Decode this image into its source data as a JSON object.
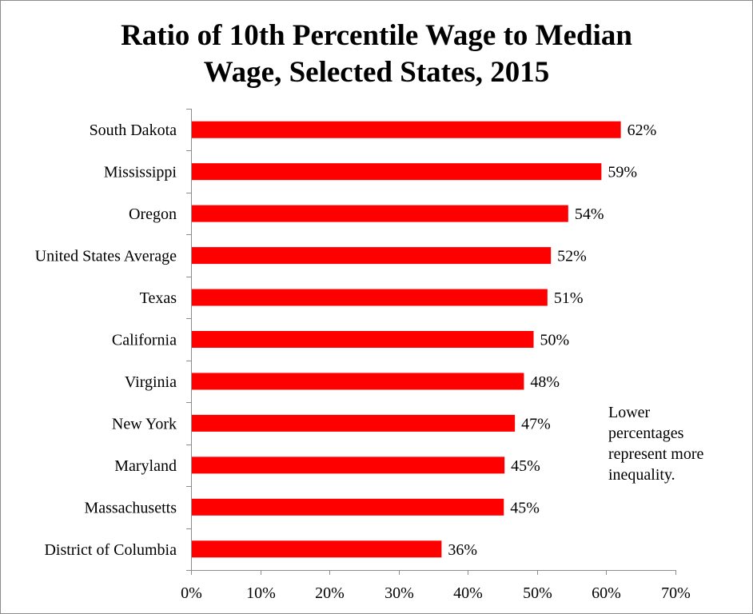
{
  "chart_data": {
    "type": "bar",
    "orientation": "horizontal",
    "title_lines": [
      "Ratio of 10th Percentile Wage to Median",
      "Wage, Selected States, 2015"
    ],
    "categories": [
      "South Dakota",
      "Mississippi",
      "Oregon",
      "United States Average",
      "Texas",
      "California",
      "Virginia",
      "New York",
      "Maryland",
      "Massachusetts",
      "District of Columbia"
    ],
    "values": [
      62,
      59,
      54,
      52,
      51,
      50,
      48,
      47,
      45,
      45,
      36
    ],
    "bar_values_precise": [
      62.1,
      59.3,
      54.5,
      52.0,
      51.5,
      49.5,
      48.1,
      46.8,
      45.3,
      45.2,
      36.2
    ],
    "value_labels": [
      "62%",
      "59%",
      "54%",
      "52%",
      "51%",
      "50%",
      "48%",
      "47%",
      "45%",
      "45%",
      "36%"
    ],
    "xlim": [
      0,
      70
    ],
    "x_ticks": [
      0,
      10,
      20,
      30,
      40,
      50,
      60,
      70
    ],
    "x_tick_labels": [
      "0%",
      "10%",
      "20%",
      "30%",
      "40%",
      "50%",
      "60%",
      "70%"
    ],
    "xlabel": "",
    "ylabel": "",
    "bar_color": "#ff0000",
    "grid": false,
    "legend": "none",
    "annotation_lines": [
      "Lower",
      "percentages",
      "represent more",
      "inequality."
    ]
  }
}
